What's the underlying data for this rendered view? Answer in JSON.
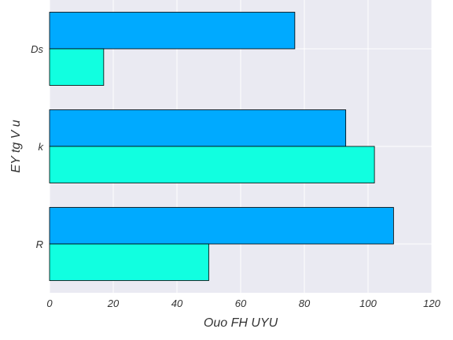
{
  "chart_data": {
    "type": "bar",
    "orientation": "horizontal",
    "title": "",
    "xlabel": "Ouo FH UYU",
    "ylabel": "EY tg V u",
    "categories": [
      "Ds",
      "k",
      "R"
    ],
    "series": [
      {
        "values": [
          77,
          93,
          108
        ],
        "color": "#00aaff"
      },
      {
        "values": [
          17,
          102,
          50
        ],
        "color": "#11ffe0"
      }
    ],
    "xlim": [
      0,
      120
    ],
    "xticks": [
      0,
      20,
      40,
      60,
      80,
      100,
      120
    ],
    "grid": true,
    "background": "#eaeaf2",
    "grid_color": "#ffffff",
    "bar_edge_color": "#000000"
  }
}
